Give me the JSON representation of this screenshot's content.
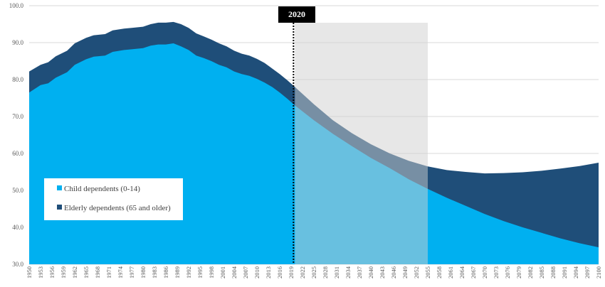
{
  "chart_data": {
    "type": "area",
    "stacked": true,
    "x_start": 1950,
    "x_end": 2100,
    "x_tick_step": 3,
    "ylim": [
      30,
      100
    ],
    "y_ticks": [
      "30.0",
      "40.0",
      "50.0",
      "60.0",
      "70.0",
      "80.0",
      "90.0",
      "100.0"
    ],
    "grid": "horizontal",
    "series": [
      {
        "name": "Child dependents (0-14)",
        "color": "#00b0f0",
        "points": [
          [
            1950,
            76.5
          ],
          [
            1953,
            78.5
          ],
          [
            1955,
            79
          ],
          [
            1957,
            80.5
          ],
          [
            1960,
            82
          ],
          [
            1962,
            84
          ],
          [
            1965,
            85.5
          ],
          [
            1967,
            86.2
          ],
          [
            1970,
            86.5
          ],
          [
            1972,
            87.5
          ],
          [
            1975,
            88
          ],
          [
            1977,
            88.2
          ],
          [
            1980,
            88.5
          ],
          [
            1982,
            89.2
          ],
          [
            1984,
            89.5
          ],
          [
            1986,
            89.5
          ],
          [
            1988,
            89.8
          ],
          [
            1990,
            89
          ],
          [
            1992,
            88
          ],
          [
            1994,
            86.5
          ],
          [
            1996,
            85.8
          ],
          [
            1998,
            85
          ],
          [
            2000,
            84
          ],
          [
            2002,
            83.3
          ],
          [
            2004,
            82.2
          ],
          [
            2006,
            81.5
          ],
          [
            2008,
            81
          ],
          [
            2010,
            80.2
          ],
          [
            2012,
            79.2
          ],
          [
            2014,
            78
          ],
          [
            2016,
            76.5
          ],
          [
            2018,
            74.8
          ],
          [
            2020,
            73
          ],
          [
            2025,
            69
          ],
          [
            2030,
            65.3
          ],
          [
            2035,
            62
          ],
          [
            2040,
            58.8
          ],
          [
            2045,
            56
          ],
          [
            2050,
            53
          ],
          [
            2055,
            50.4
          ],
          [
            2060,
            48
          ],
          [
            2065,
            45.8
          ],
          [
            2070,
            43.6
          ],
          [
            2075,
            41.7
          ],
          [
            2080,
            40
          ],
          [
            2085,
            38.5
          ],
          [
            2090,
            37
          ],
          [
            2095,
            35.7
          ],
          [
            2100,
            34.6
          ]
        ]
      },
      {
        "name": "Elderly dependents (65 and older)",
        "color": "#1f4e79",
        "points": [
          [
            1950,
            82.2
          ],
          [
            1953,
            84
          ],
          [
            1955,
            84.7
          ],
          [
            1957,
            86.3
          ],
          [
            1960,
            87.8
          ],
          [
            1962,
            89.8
          ],
          [
            1965,
            91.3
          ],
          [
            1967,
            92
          ],
          [
            1970,
            92.3
          ],
          [
            1972,
            93.3
          ],
          [
            1975,
            93.8
          ],
          [
            1977,
            94
          ],
          [
            1980,
            94.3
          ],
          [
            1982,
            95
          ],
          [
            1984,
            95.4
          ],
          [
            1986,
            95.4
          ],
          [
            1988,
            95.6
          ],
          [
            1990,
            95
          ],
          [
            1992,
            94
          ],
          [
            1994,
            92.5
          ],
          [
            1996,
            91.7
          ],
          [
            1998,
            90.8
          ],
          [
            2000,
            89.8
          ],
          [
            2002,
            89
          ],
          [
            2004,
            87.8
          ],
          [
            2006,
            87
          ],
          [
            2008,
            86.5
          ],
          [
            2010,
            85.6
          ],
          [
            2012,
            84.5
          ],
          [
            2014,
            83
          ],
          [
            2016,
            81.5
          ],
          [
            2018,
            79.8
          ],
          [
            2020,
            78
          ],
          [
            2025,
            73.3
          ],
          [
            2030,
            69
          ],
          [
            2035,
            65.5
          ],
          [
            2040,
            62.5
          ],
          [
            2045,
            60
          ],
          [
            2050,
            58
          ],
          [
            2055,
            56.5
          ],
          [
            2060,
            55.5
          ],
          [
            2065,
            55
          ],
          [
            2070,
            54.6
          ],
          [
            2075,
            54.7
          ],
          [
            2080,
            54.9
          ],
          [
            2085,
            55.3
          ],
          [
            2090,
            55.9
          ],
          [
            2095,
            56.6
          ],
          [
            2100,
            57.5
          ]
        ]
      }
    ],
    "highlight_range": [
      2020,
      2055
    ],
    "marker": {
      "year": 2020,
      "label": "2020"
    }
  }
}
